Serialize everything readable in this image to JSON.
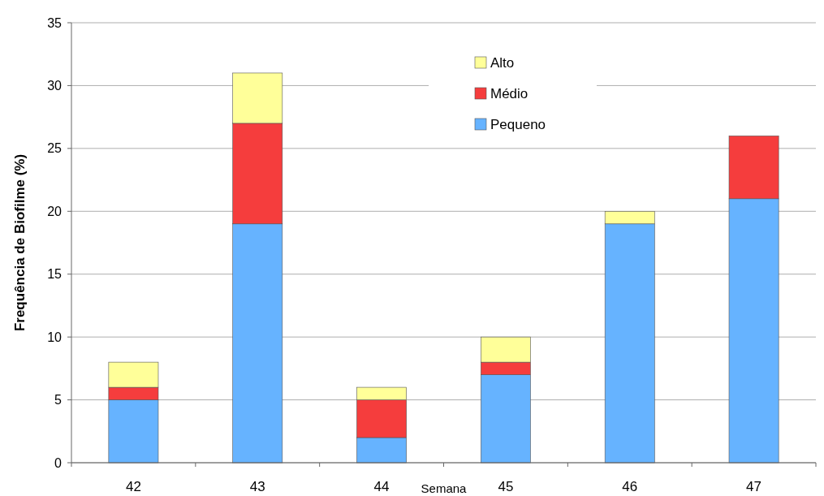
{
  "chart_data": {
    "type": "bar",
    "stacked": true,
    "xlabel": "Semana",
    "ylabel": "Frequência de Biofilme (%)",
    "categories": [
      "42",
      "43",
      "44",
      "45",
      "46",
      "47"
    ],
    "series": [
      {
        "name": "Pequeno",
        "color": "#66b3ff",
        "values": [
          5,
          19,
          2,
          7,
          19,
          21
        ]
      },
      {
        "name": "Médio",
        "color": "#f53d3d",
        "values": [
          1,
          8,
          3,
          1,
          0,
          5
        ]
      },
      {
        "name": "Alto",
        "color": "#ffff99",
        "values": [
          2,
          4,
          1,
          2,
          1,
          0
        ]
      }
    ],
    "ylim": [
      0,
      35
    ],
    "yticks": [
      0,
      5,
      10,
      15,
      20,
      25,
      30,
      35
    ],
    "grid": "y",
    "legend": "top"
  }
}
